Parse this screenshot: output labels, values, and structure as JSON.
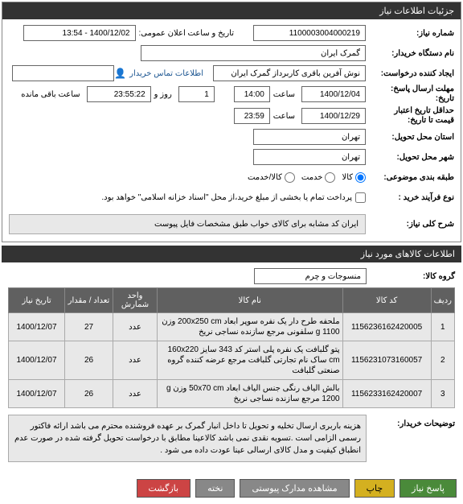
{
  "header": {
    "title": "جزئیات اطلاعات نیاز"
  },
  "fields": {
    "req_no_label": "شماره نیاز:",
    "req_no": "1100003004000219",
    "announce_label": "تاریخ و ساعت اعلان عمومی:",
    "announce_value": "1400/12/02 - 13:54",
    "buyer_label": "نام دستگاه خریدار:",
    "buyer": "گمرک ایران",
    "creator_label": "ایجاد کننده درخواست:",
    "creator": "نوش آفرین باقری کاربرداز گمرک ایران",
    "contact_link": "اطلاعات تماس خریدار",
    "deadline_label": "مهلت ارسال پاسخ:\nتاریخ:",
    "deadline_date": "1400/12/04",
    "time_label": "ساعت",
    "deadline_time": "14:00",
    "day_label": "روز و",
    "days": "1",
    "countdown": "23:55:22",
    "remaining": "ساعت باقی مانده",
    "validity_label": "حداقل تاریخ اعتبار\nقیمت تا تاریخ:",
    "validity_date": "1400/12/29",
    "validity_time": "23:59",
    "province_label": "استان محل تحویل:",
    "province": "تهران",
    "city_label": "شهر محل تحویل:",
    "city": "تهران",
    "category_label": "طبقه بندی موضوعی:",
    "cat_opts": [
      {
        "label": "کالا",
        "checked": true
      },
      {
        "label": "خدمت",
        "checked": false
      },
      {
        "label": "کالا/خدمت",
        "checked": false
      }
    ],
    "process_label": "نوع فرآیند خرید :",
    "process_text": "پرداخت تمام یا بخشی از مبلغ خرید،از محل \"اسناد خزانه اسلامی\" خواهد بود.",
    "desc_label": "شرح کلی نیاز:",
    "desc": "ایران کد مشابه برای کالای خواب طبق مشخصات فایل پیوست"
  },
  "goods": {
    "title": "اطلاعات کالاهای مورد نیاز",
    "group_label": "گروه کالا:",
    "group": "منسوجات و چرم",
    "columns": [
      "ردیف",
      "کد کالا",
      "نام کالا",
      "واحد شمارش",
      "تعداد / مقدار",
      "تاریخ نیاز"
    ],
    "col_widths": [
      "28px",
      "110px",
      "auto",
      "55px",
      "60px",
      "70px"
    ],
    "rows": [
      {
        "n": "1",
        "code": "1156236162420005",
        "name": "ملحفه طرح دار یک نفره سوپر ابعاد 200x250 cm وزن g 1100 سلفونی مرجع سازنده نساجی نریخ",
        "unit": "عدد",
        "qty": "27",
        "date": "1400/12/07"
      },
      {
        "n": "2",
        "code": "1156231073160057",
        "name": "پتو گلبافت یک نفره پلی استر کد 343 سایز 160x220 cm ساک نام تجارتی گلبافت مرجع عرضه کننده گروه صنعتی گلبافت",
        "unit": "عدد",
        "qty": "26",
        "date": "1400/12/07"
      },
      {
        "n": "3",
        "code": "1156233162420007",
        "name": "بالش الیاف رنگی جنس الیاف ابعاد 50x70 cm وزن g 1200 مرجع سازنده نساجی نریخ",
        "unit": "عدد",
        "qty": "26",
        "date": "1400/12/07"
      }
    ]
  },
  "notes": {
    "label": "توضیحات خریدار:",
    "text": "هزینه باربری ارسال تخلیه و تحویل تا داخل انبار گمرک بر عهده فروشنده محترم می باشد ارائه فاکتور رسمی الزامی است .تسویه نقدی نمی باشد کالاعینا مطابق با درخواست تحویل گرفته شده  در صورت عدم انطباق کیفیت و مدل کالای ارسالی عینا عودت داده می شود ."
  },
  "buttons": {
    "reply": "پاسخ نیاز",
    "print": "چاپ",
    "attachments": "مشاهده مدارک پیوستی",
    "thread": "نخته",
    "back": "بازگشت"
  }
}
